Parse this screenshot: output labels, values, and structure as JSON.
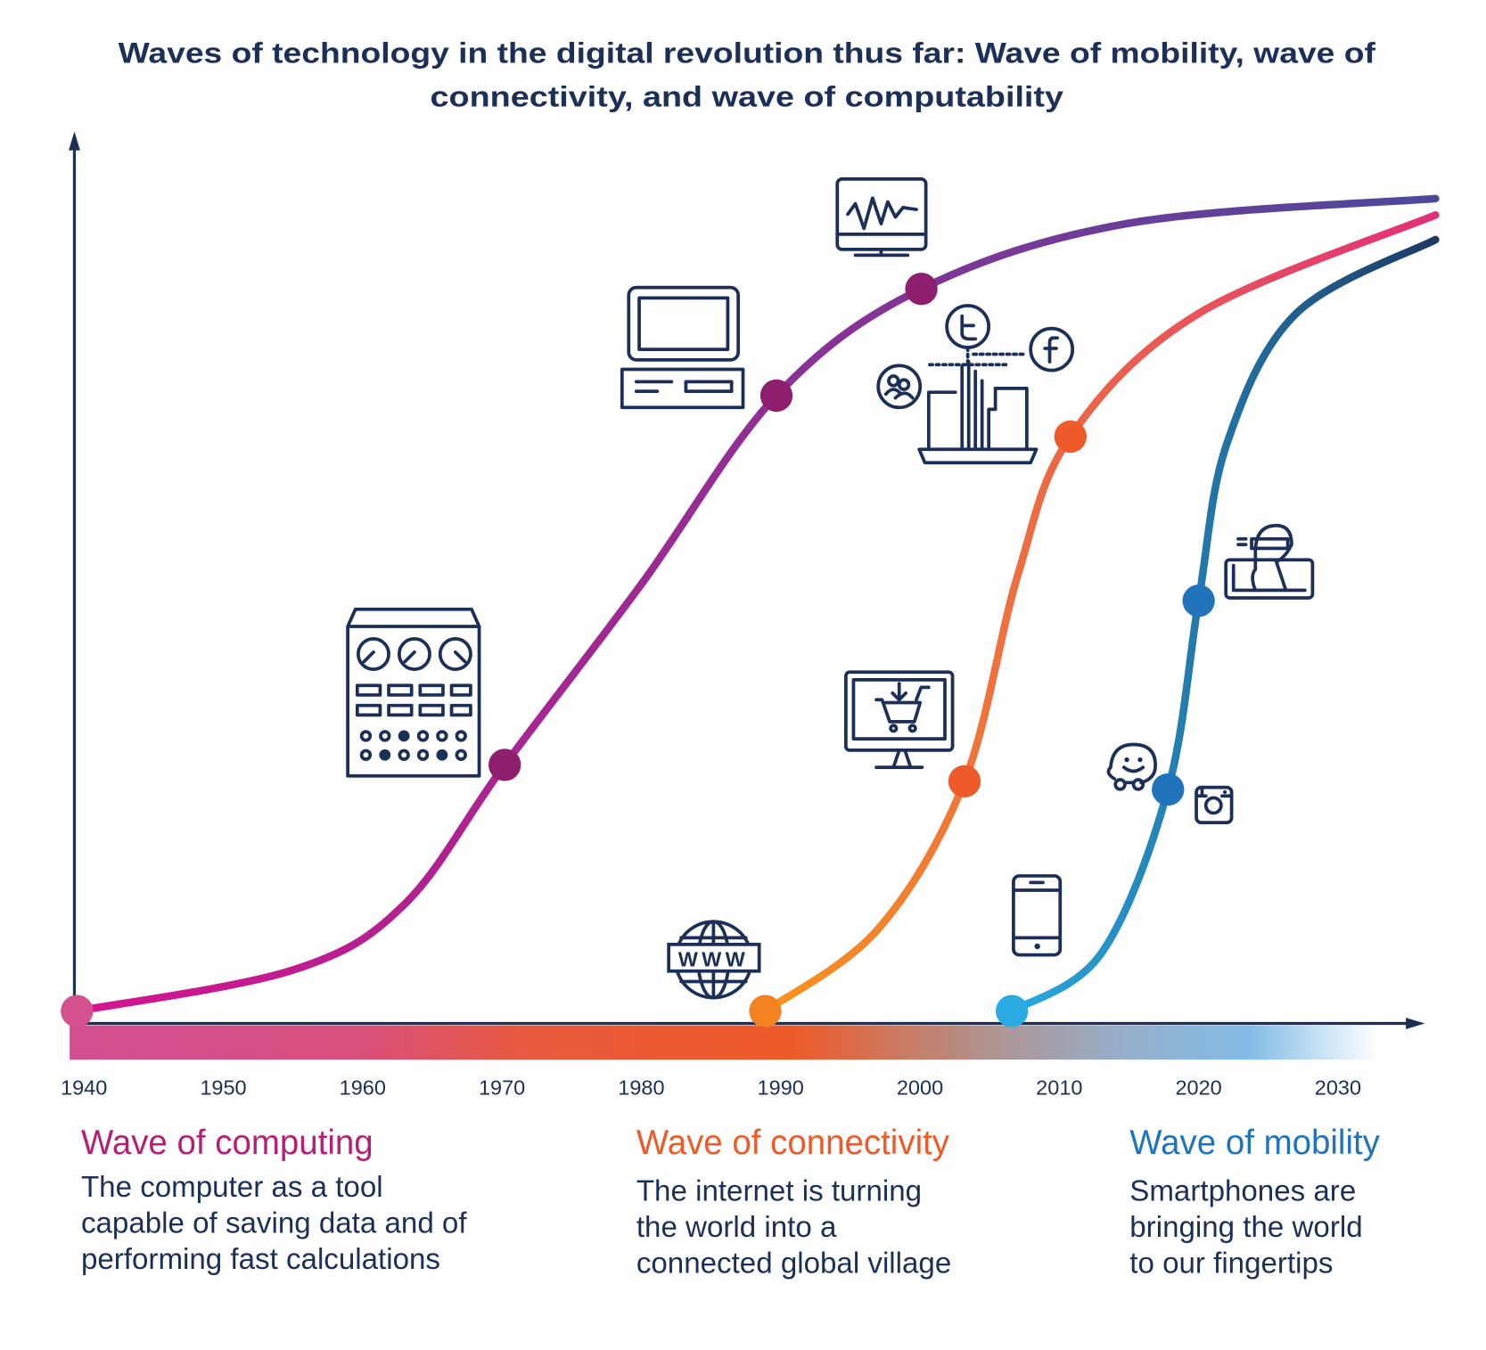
{
  "chart_data": {
    "type": "line",
    "title": "Waves of technology in the digital revolution thus far: Wave of mobility, wave of connectivity, and wave of computability",
    "title_lines": [
      "Waves of technology in the digital revolution thus far: Wave of mobility, wave of",
      "connectivity, and wave of computability"
    ],
    "xlabel": "",
    "ylabel": "",
    "xlim": [
      1940,
      2037
    ],
    "ylim": [
      0,
      100
    ],
    "x_ticks": [
      "1940",
      "1950",
      "1960",
      "1970",
      "1980",
      "1990",
      "2000",
      "2010",
      "2020",
      "2030"
    ],
    "grid": false,
    "series": [
      {
        "name": "Wave of computing",
        "description": [
          "The computer as a tool",
          "capable of saving data and of",
          "performing fast calculations"
        ],
        "color_start": "#d4148e",
        "color_end": "#4b4a9a",
        "label_color": "#b61f76",
        "points": [
          [
            1939.5,
            0
          ],
          [
            1955,
            5
          ],
          [
            1963,
            13
          ],
          [
            1970.2,
            30
          ],
          [
            1980,
            52
          ],
          [
            1989.7,
            75
          ],
          [
            2000.1,
            88
          ],
          [
            2015,
            96
          ],
          [
            2037,
            99
          ]
        ],
        "markers": [
          [
            1939.5,
            0,
            "#d4508f"
          ],
          [
            1970.2,
            30,
            "#8e1f6e"
          ],
          [
            1989.7,
            75,
            "#8e1f6e"
          ],
          [
            2000.1,
            88,
            "#8e1f6e"
          ]
        ]
      },
      {
        "name": "Wave of connectivity",
        "description": [
          "The internet is turning",
          "the world into a",
          "connected global village"
        ],
        "color_start": "#f7941d",
        "color_end": "#e0307a",
        "label_color": "#ef5a28",
        "points": [
          [
            1988.9,
            0
          ],
          [
            1997,
            10
          ],
          [
            2003.2,
            28
          ],
          [
            2007,
            53
          ],
          [
            2010.8,
            70
          ],
          [
            2020,
            85
          ],
          [
            2037,
            97
          ]
        ],
        "markers": [
          [
            1988.9,
            0,
            "#f58220"
          ],
          [
            2003.2,
            28,
            "#ee5a2a"
          ],
          [
            2010.8,
            70,
            "#ee5a2a"
          ]
        ]
      },
      {
        "name": "Wave of mobility",
        "description": [
          "Smartphones are",
          "bringing the world",
          "to our fingertips"
        ],
        "color_start": "#29abe2",
        "color_end": "#1d3a64",
        "label_color": "#1f74bb",
        "points": [
          [
            2006.6,
            0
          ],
          [
            2013,
            7
          ],
          [
            2017.8,
            27
          ],
          [
            2020,
            50
          ],
          [
            2022,
            69
          ],
          [
            2027,
            85
          ],
          [
            2037,
            94
          ]
        ],
        "markers": [
          [
            2006.6,
            0,
            "#29abe2"
          ],
          [
            2017.8,
            27,
            "#1f74bb"
          ],
          [
            2020,
            50,
            "#1f74bb"
          ]
        ]
      }
    ]
  },
  "colors": {
    "axis": "#1c2f57",
    "text": "#1c2f57"
  },
  "icons": [
    "mainframe-icon",
    "personal-computer-icon",
    "monitor-waveform-icon",
    "laptop-social-network-icon",
    "twitter-icon",
    "facebook-icon",
    "community-icon",
    "online-shopping-icon",
    "www-globe-icon",
    "smartphone-icon",
    "waze-icon",
    "instagram-icon",
    "vr-tablet-icon"
  ]
}
